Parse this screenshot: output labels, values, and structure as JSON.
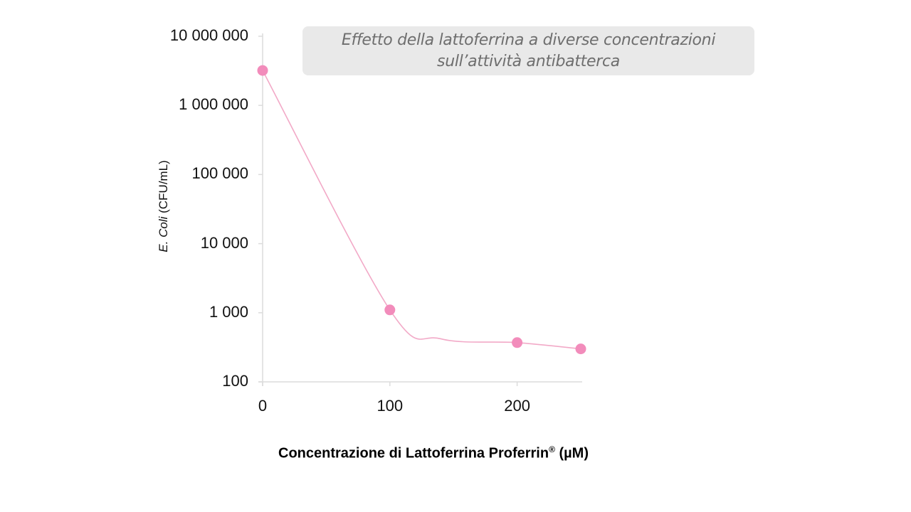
{
  "chart_data": {
    "type": "line",
    "title": "Effetto della lattoferrina a diverse concentrazioni sull’attività antibatterca",
    "title_lines": [
      "Effetto della lattoferrina a diverse concentrazioni",
      "sull’attività antibatterca"
    ],
    "xlabel": "Concentrazione di Lattoferrina Proferrin® (µM)",
    "xlabel_main": "Concentrazione di Lattoferrina Proferrin",
    "xlabel_sup": "®",
    "xlabel_unit": " (µM)",
    "ylabel": "E. Coli (CFU/mL)",
    "ylabel_italic": "E. Coli",
    "ylabel_rest": " (CFU/mL)",
    "yscale": "log",
    "ylim": [
      100,
      10000000
    ],
    "xlim": [
      0,
      250
    ],
    "y_ticks": [
      "10 000 000",
      "1 000 000",
      "100 000",
      "10 000",
      "1 000",
      "100"
    ],
    "y_tick_values": [
      10000000,
      1000000,
      100000,
      10000,
      1000,
      100
    ],
    "x_ticks": [
      "0",
      "100",
      "200"
    ],
    "x_tick_values": [
      0,
      100,
      200
    ],
    "grid": false,
    "legend": null,
    "series": [
      {
        "name": "E. Coli",
        "color": "#f28cbb",
        "line_color": "#f2a9c7",
        "x": [
          0,
          100,
          200,
          250
        ],
        "values": [
          3200000,
          1100,
          370,
          300
        ]
      }
    ]
  },
  "colors": {
    "axis": "#dcdcdc",
    "title_bg": "#e9e9e9",
    "title_text": "#6e6e6e",
    "marker": "#f28cbb",
    "line": "#f2a9c7"
  }
}
